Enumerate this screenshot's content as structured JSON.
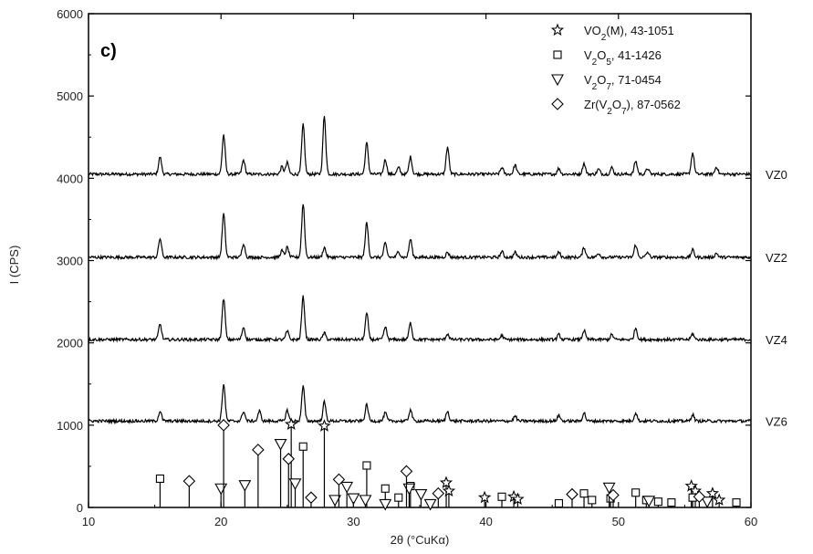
{
  "chart_data": {
    "type": "line",
    "panel_label": "c)",
    "xlabel": "2θ (°CuKα)",
    "ylabel": "I (CPS)",
    "xlim": [
      10,
      60
    ],
    "ylim": [
      0,
      6000
    ],
    "x_ticks": [
      10,
      20,
      30,
      40,
      50,
      60
    ],
    "y_ticks": [
      0,
      1000,
      2000,
      3000,
      4000,
      5000,
      6000
    ],
    "x_tick_labels": [
      "10",
      "20",
      "30",
      "40",
      "50",
      "60"
    ],
    "y_tick_labels": [
      "0",
      "1000",
      "2000",
      "3000",
      "4000",
      "5000",
      "6000"
    ],
    "grid": false,
    "legend_position": "top-right",
    "series": [
      {
        "name": "VZ0",
        "baseline": 4050,
        "peaks": [
          [
            15.4,
            210
          ],
          [
            20.2,
            480
          ],
          [
            21.7,
            170
          ],
          [
            24.6,
            90
          ],
          [
            25.0,
            140
          ],
          [
            26.2,
            600
          ],
          [
            27.8,
            700
          ],
          [
            31.0,
            380
          ],
          [
            32.4,
            180
          ],
          [
            33.4,
            80
          ],
          [
            34.3,
            210
          ],
          [
            37.1,
            330
          ],
          [
            41.2,
            80
          ],
          [
            42.2,
            110
          ],
          [
            45.5,
            70
          ],
          [
            47.4,
            130
          ],
          [
            48.5,
            60
          ],
          [
            49.5,
            80
          ],
          [
            51.3,
            160
          ],
          [
            52.2,
            70
          ],
          [
            55.6,
            260
          ],
          [
            57.4,
            90
          ]
        ]
      },
      {
        "name": "VZ2",
        "baseline": 3040,
        "peaks": [
          [
            15.4,
            230
          ],
          [
            20.2,
            530
          ],
          [
            21.7,
            170
          ],
          [
            24.6,
            80
          ],
          [
            25.0,
            120
          ],
          [
            26.2,
            650
          ],
          [
            27.8,
            120
          ],
          [
            31.0,
            420
          ],
          [
            32.4,
            170
          ],
          [
            33.4,
            70
          ],
          [
            34.3,
            220
          ],
          [
            37.1,
            60
          ],
          [
            41.2,
            70
          ],
          [
            42.2,
            60
          ],
          [
            45.5,
            60
          ],
          [
            47.4,
            120
          ],
          [
            48.5,
            50
          ],
          [
            51.3,
            150
          ],
          [
            52.2,
            60
          ],
          [
            55.6,
            90
          ],
          [
            57.4,
            50
          ]
        ]
      },
      {
        "name": "VZ4",
        "baseline": 2040,
        "peaks": [
          [
            15.4,
            190
          ],
          [
            20.2,
            500
          ],
          [
            21.7,
            150
          ],
          [
            25.0,
            100
          ],
          [
            26.2,
            520
          ],
          [
            27.8,
            80
          ],
          [
            31.0,
            320
          ],
          [
            32.4,
            150
          ],
          [
            34.3,
            200
          ],
          [
            37.1,
            70
          ],
          [
            41.2,
            50
          ],
          [
            45.5,
            60
          ],
          [
            47.4,
            110
          ],
          [
            49.5,
            60
          ],
          [
            51.3,
            140
          ],
          [
            55.6,
            70
          ]
        ]
      },
      {
        "name": "VZ6",
        "baseline": 1050,
        "peaks": [
          [
            15.4,
            120
          ],
          [
            20.2,
            450
          ],
          [
            21.7,
            120
          ],
          [
            22.9,
            120
          ],
          [
            25.0,
            130
          ],
          [
            26.2,
            420
          ],
          [
            27.8,
            230
          ],
          [
            31.0,
            200
          ],
          [
            32.4,
            100
          ],
          [
            34.3,
            140
          ],
          [
            37.1,
            120
          ],
          [
            42.2,
            60
          ],
          [
            45.5,
            70
          ],
          [
            47.4,
            100
          ],
          [
            51.3,
            100
          ],
          [
            55.6,
            80
          ]
        ]
      }
    ],
    "references": [
      {
        "name": "VO2(M), 43-1051",
        "marker": "star",
        "sticks": [
          [
            25.3,
            1010
          ],
          [
            27.8,
            990
          ],
          [
            37.0,
            300
          ],
          [
            37.2,
            200
          ],
          [
            39.9,
            120
          ],
          [
            42.1,
            130
          ],
          [
            42.4,
            100
          ],
          [
            55.5,
            260
          ],
          [
            55.8,
            200
          ],
          [
            57.1,
            170
          ],
          [
            57.6,
            90
          ]
        ]
      },
      {
        "name": "V2O5, 41-1426",
        "marker": "square",
        "sticks": [
          [
            15.4,
            350
          ],
          [
            26.2,
            740
          ],
          [
            31.0,
            510
          ],
          [
            32.4,
            230
          ],
          [
            33.4,
            120
          ],
          [
            34.3,
            260
          ],
          [
            41.2,
            130
          ],
          [
            45.5,
            50
          ],
          [
            47.4,
            170
          ],
          [
            48.0,
            90
          ],
          [
            49.4,
            110
          ],
          [
            51.3,
            180
          ],
          [
            52.1,
            90
          ],
          [
            53.0,
            70
          ],
          [
            54.0,
            60
          ],
          [
            55.6,
            120
          ],
          [
            58.9,
            60
          ]
        ]
      },
      {
        "name": "V2O7, 71-0454",
        "marker": "triangle",
        "sticks": [
          [
            20.0,
            230
          ],
          [
            21.8,
            270
          ],
          [
            24.5,
            770
          ],
          [
            25.6,
            290
          ],
          [
            28.6,
            90
          ],
          [
            29.5,
            250
          ],
          [
            30.0,
            110
          ],
          [
            30.9,
            90
          ],
          [
            32.4,
            40
          ],
          [
            34.2,
            230
          ],
          [
            35.1,
            160
          ],
          [
            35.8,
            40
          ],
          [
            49.3,
            240
          ],
          [
            52.3,
            80
          ],
          [
            56.7,
            70
          ]
        ]
      },
      {
        "name": "Zr(V2O7), 87-0562",
        "marker": "diamond",
        "sticks": [
          [
            17.6,
            320
          ],
          [
            20.2,
            1000
          ],
          [
            22.8,
            700
          ],
          [
            25.1,
            590
          ],
          [
            26.8,
            120
          ],
          [
            28.9,
            340
          ],
          [
            34.0,
            440
          ],
          [
            36.4,
            170
          ],
          [
            46.5,
            160
          ],
          [
            49.6,
            150
          ],
          [
            56.1,
            130
          ]
        ]
      }
    ]
  }
}
